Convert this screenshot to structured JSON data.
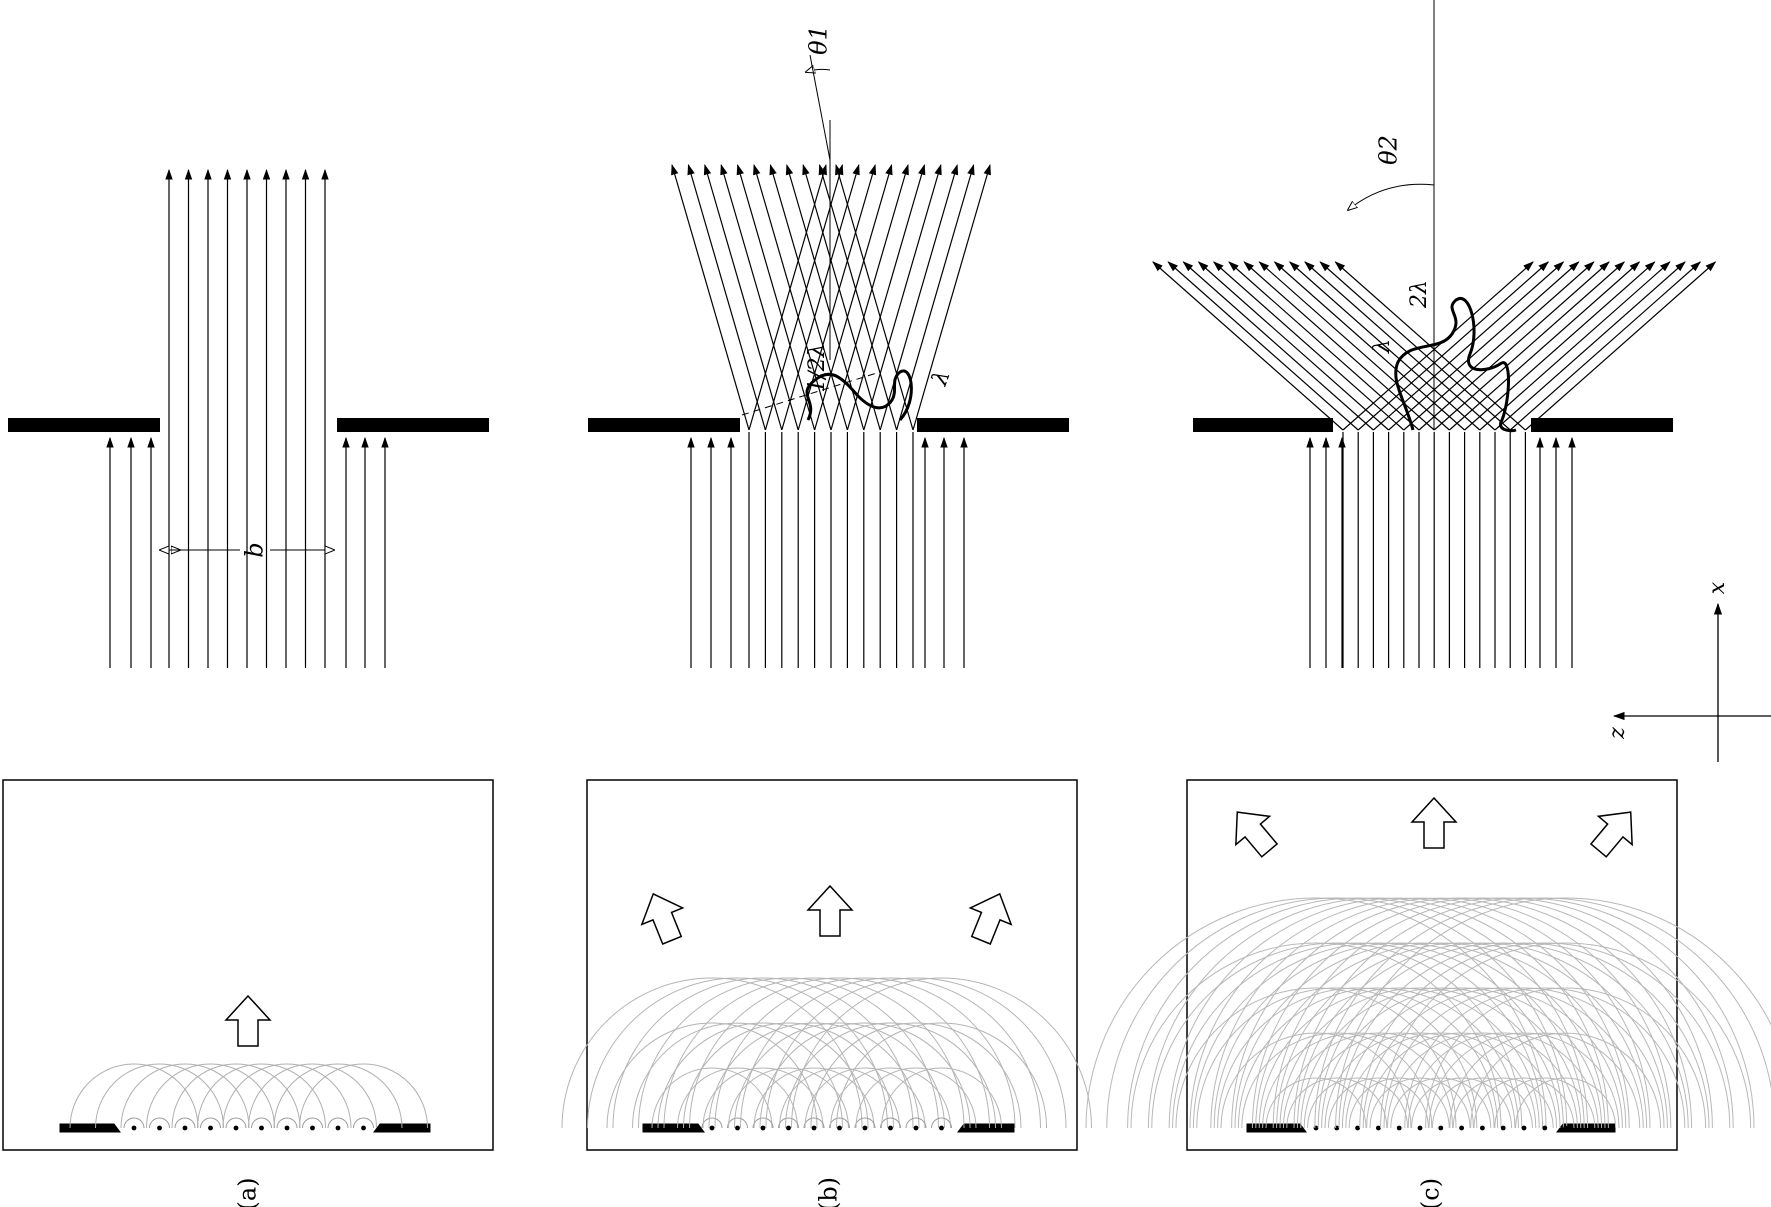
{
  "labels": {
    "slit_width": "b",
    "theta1": "θ1",
    "theta2": "θ2",
    "half_lambda": "1/2λ",
    "lambda_b": "λ",
    "lambda_c": "λ",
    "two_lambda": "2λ",
    "axis_x": "x",
    "axis_z": "z"
  },
  "captions": {
    "a": "(a)",
    "b": "(b)",
    "c": "(c)"
  },
  "colors": {
    "ink": "#000000",
    "wavefront": "#b0b0b0",
    "frame": "#000000"
  }
}
